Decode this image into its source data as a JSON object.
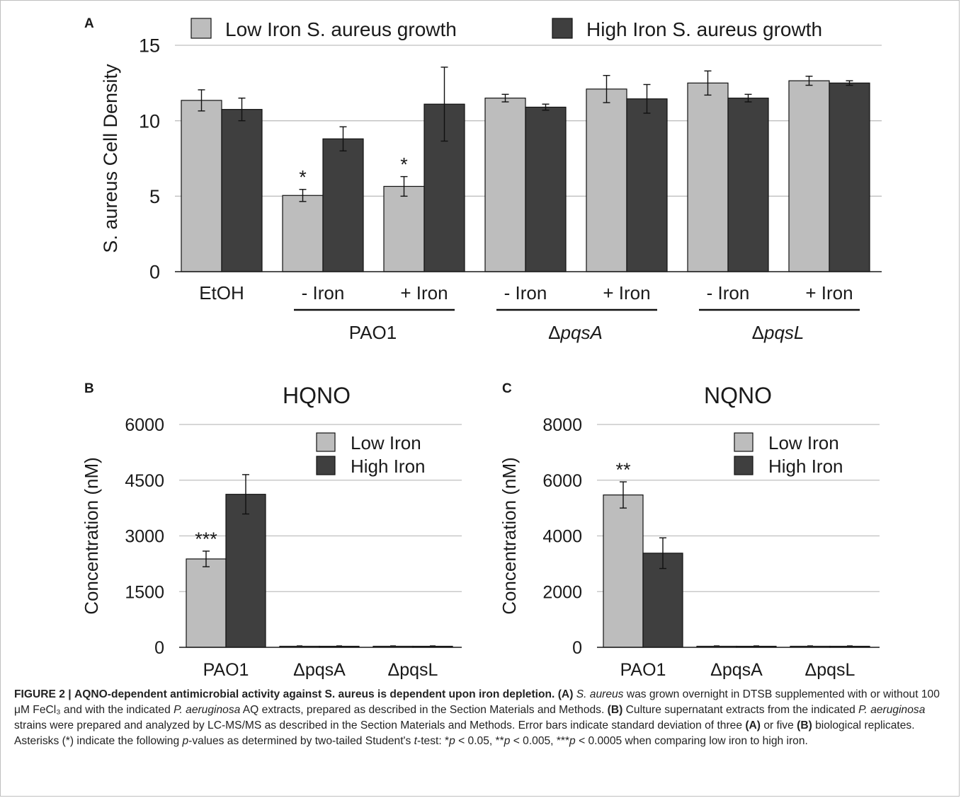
{
  "figure": {
    "panels": [
      "A",
      "B",
      "C"
    ],
    "caption": {
      "number": "FIGURE 2 |",
      "title": "AQNO-dependent antimicrobial activity against S. aureus is dependent upon iron depletion.",
      "text": [
        {
          "t": " "
        },
        {
          "t": "(A)",
          "b": true
        },
        {
          "t": " "
        },
        {
          "t": "S. aureus",
          "i": true
        },
        {
          "t": " was grown overnight in DTSB supplemented with or without 100 μM FeCl₃ and with the indicated "
        },
        {
          "t": "P. aeruginosa",
          "i": true
        },
        {
          "t": " AQ extracts, prepared as described in the Section Materials and Methods. "
        },
        {
          "t": "(B)",
          "b": true
        },
        {
          "t": " Culture supernatant extracts from the indicated "
        },
        {
          "t": "P. aeruginosa",
          "i": true
        },
        {
          "t": " strains were prepared and analyzed by LC-MS/MS as described in the Section Materials and Methods. Error bars indicate standard deviation of three "
        },
        {
          "t": "(A)",
          "b": true
        },
        {
          "t": " or five "
        },
        {
          "t": "(B)",
          "b": true
        },
        {
          "t": " biological replicates. Asterisks (*) indicate the following "
        },
        {
          "t": "p",
          "i": true
        },
        {
          "t": "-values as determined by two-tailed Student's "
        },
        {
          "t": "t",
          "i": true
        },
        {
          "t": "-test: *"
        },
        {
          "t": "p",
          "i": true
        },
        {
          "t": " < 0.05, **"
        },
        {
          "t": "p",
          "i": true
        },
        {
          "t": " < 0.005, ***"
        },
        {
          "t": "p",
          "i": true
        },
        {
          "t": " < 0.0005 when comparing low iron to high iron."
        }
      ]
    }
  },
  "colors": {
    "low": "#bdbdbd",
    "high": "#3f3f3f",
    "grid": "#bfbfbf",
    "axis": "#1a1a1a"
  },
  "chart_data": [
    {
      "panel": "A",
      "type": "bar",
      "title": "",
      "ylabel": "S. aureus Cell Density",
      "xlabel": "",
      "ylim": [
        0,
        15
      ],
      "yticks": [
        0,
        5,
        10,
        15
      ],
      "grid": true,
      "legend": "top",
      "categories": [
        "EtOH",
        "- Iron",
        "+ Iron",
        "- Iron",
        "+ Iron",
        "- Iron",
        "+ Iron"
      ],
      "groups": [
        {
          "label": "PAO1",
          "from": 1,
          "to": 2
        },
        {
          "label": "ΔpqsA",
          "from": 3,
          "to": 4
        },
        {
          "label": "ΔpqsL",
          "from": 5,
          "to": 6
        }
      ],
      "series": [
        {
          "name": "Low Iron S. aureus growth",
          "values": [
            11.35,
            5.05,
            5.65,
            11.5,
            12.1,
            12.5,
            12.65
          ],
          "errors": [
            0.7,
            0.4,
            0.65,
            0.25,
            0.9,
            0.8,
            0.3
          ]
        },
        {
          "name": "High Iron S. aureus growth",
          "values": [
            10.75,
            8.8,
            11.1,
            10.9,
            11.45,
            11.5,
            12.5
          ],
          "errors": [
            0.75,
            0.8,
            2.45,
            0.2,
            0.95,
            0.25,
            0.15
          ]
        }
      ],
      "annotations": [
        {
          "category": 1,
          "series": 0,
          "text": "*"
        },
        {
          "category": 2,
          "series": 0,
          "text": "*"
        }
      ]
    },
    {
      "panel": "B",
      "type": "bar",
      "title": "HQNO",
      "ylabel": "Concentration (nM)",
      "xlabel": "",
      "ylim": [
        0,
        6000
      ],
      "yticks": [
        0,
        1500,
        3000,
        4500,
        6000
      ],
      "grid": true,
      "legend": "top-right",
      "categories": [
        "PAO1",
        "ΔpqsA",
        "ΔpqsL"
      ],
      "series": [
        {
          "name": "Low Iron",
          "values": [
            2380,
            0,
            0
          ],
          "errors": [
            210,
            0,
            0
          ]
        },
        {
          "name": "High Iron",
          "values": [
            4120,
            0,
            0
          ],
          "errors": [
            530,
            0,
            0
          ]
        }
      ],
      "annotations": [
        {
          "category": 0,
          "series": 0,
          "text": "***"
        }
      ]
    },
    {
      "panel": "C",
      "type": "bar",
      "title": "NQNO",
      "ylabel": "Concentration (nM)",
      "xlabel": "",
      "ylim": [
        0,
        8000
      ],
      "yticks": [
        0,
        2000,
        4000,
        6000,
        8000
      ],
      "grid": true,
      "legend": "top-right",
      "categories": [
        "PAO1",
        "ΔpqsA",
        "ΔpqsL"
      ],
      "series": [
        {
          "name": "Low Iron",
          "values": [
            5470,
            0,
            0
          ],
          "errors": [
            470,
            0,
            0
          ]
        },
        {
          "name": "High Iron",
          "values": [
            3380,
            0,
            0
          ],
          "errors": [
            550,
            0,
            0
          ]
        }
      ],
      "annotations": [
        {
          "category": 0,
          "series": 0,
          "text": "**"
        }
      ]
    }
  ]
}
